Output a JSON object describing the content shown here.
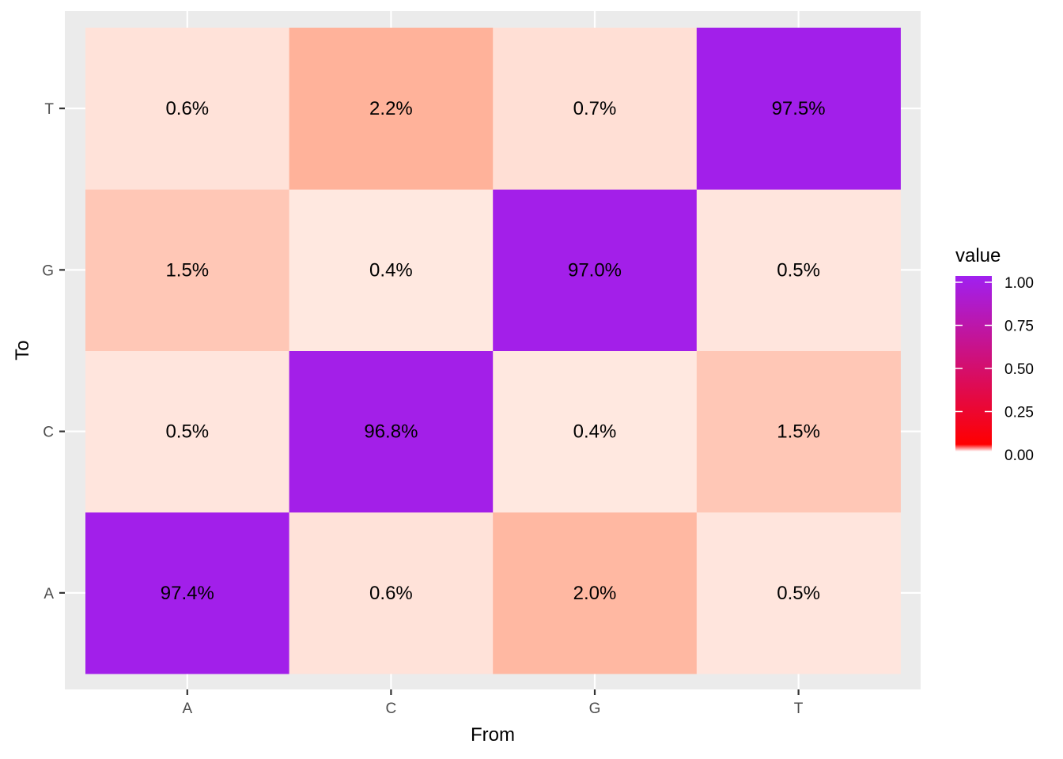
{
  "chart_data": {
    "type": "heatmap",
    "x_categories": [
      "A",
      "C",
      "G",
      "T"
    ],
    "y_categories": [
      "A",
      "C",
      "G",
      "T"
    ],
    "xlabel": "From",
    "ylabel": "To",
    "cells": [
      {
        "from": "A",
        "to": "A",
        "value": 0.974,
        "label": "97.4%"
      },
      {
        "from": "C",
        "to": "A",
        "value": 0.006,
        "label": "0.6%"
      },
      {
        "from": "G",
        "to": "A",
        "value": 0.02,
        "label": "2.0%"
      },
      {
        "from": "T",
        "to": "A",
        "value": 0.005,
        "label": "0.5%"
      },
      {
        "from": "A",
        "to": "C",
        "value": 0.005,
        "label": "0.5%"
      },
      {
        "from": "C",
        "to": "C",
        "value": 0.968,
        "label": "96.8%"
      },
      {
        "from": "G",
        "to": "C",
        "value": 0.004,
        "label": "0.4%"
      },
      {
        "from": "T",
        "to": "C",
        "value": 0.015,
        "label": "1.5%"
      },
      {
        "from": "A",
        "to": "G",
        "value": 0.015,
        "label": "1.5%"
      },
      {
        "from": "C",
        "to": "G",
        "value": 0.004,
        "label": "0.4%"
      },
      {
        "from": "G",
        "to": "G",
        "value": 0.97,
        "label": "97.0%"
      },
      {
        "from": "T",
        "to": "G",
        "value": 0.005,
        "label": "0.5%"
      },
      {
        "from": "A",
        "to": "T",
        "value": 0.006,
        "label": "0.6%"
      },
      {
        "from": "C",
        "to": "T",
        "value": 0.022,
        "label": "2.2%"
      },
      {
        "from": "G",
        "to": "T",
        "value": 0.007,
        "label": "0.7%"
      },
      {
        "from": "T",
        "to": "T",
        "value": 0.975,
        "label": "97.5%"
      }
    ],
    "legend": {
      "title": "value",
      "ticks": [
        {
          "value": 1.0,
          "label": "1.00"
        },
        {
          "value": 0.75,
          "label": "0.75"
        },
        {
          "value": 0.5,
          "label": "0.50"
        },
        {
          "value": 0.25,
          "label": "0.25"
        },
        {
          "value": 0.0,
          "label": "0.00"
        }
      ],
      "range": [
        0,
        1
      ],
      "placement": "right"
    },
    "colors": {
      "panel_background": "#ebebeb",
      "grid": "#ffffff",
      "high": "#a020f0",
      "low": "#ff0000",
      "white": "#ffffff"
    },
    "grid": true
  }
}
